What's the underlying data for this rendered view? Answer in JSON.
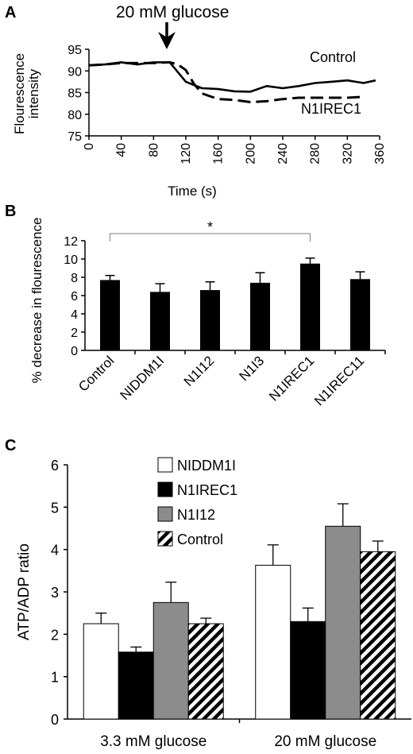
{
  "chart_data": [
    {
      "panel": "A",
      "type": "line",
      "annotation": "20 mM glucose",
      "annotation_x": 100,
      "xlabel": "Time (s)",
      "ylabel": "Flourescence intensity",
      "ylabel_lines": [
        "Flourescence",
        "intensity"
      ],
      "xlim": [
        0,
        360
      ],
      "ylim": [
        75,
        95
      ],
      "xticks": [
        0,
        40,
        80,
        120,
        160,
        200,
        240,
        280,
        320,
        360
      ],
      "yticks": [
        75,
        80,
        85,
        90,
        95
      ],
      "series": [
        {
          "name": "Control",
          "style": "solid",
          "x": [
            0,
            20,
            40,
            60,
            80,
            100,
            120,
            140,
            160,
            180,
            200,
            220,
            240,
            260,
            280,
            300,
            320,
            340,
            355
          ],
          "y": [
            91.3,
            91.5,
            92.0,
            91.5,
            92.0,
            92.0,
            87.5,
            86.0,
            85.8,
            85.3,
            85.2,
            86.5,
            86.0,
            86.5,
            87.2,
            87.5,
            87.8,
            87.2,
            87.8
          ]
        },
        {
          "name": "N1IREC1",
          "style": "dashed",
          "x": [
            0,
            20,
            40,
            60,
            80,
            100,
            110,
            120,
            130,
            140,
            160,
            180,
            200,
            220,
            240,
            260,
            280,
            300,
            320,
            340
          ],
          "y": [
            91.3,
            91.5,
            91.8,
            91.8,
            91.8,
            92.0,
            91.5,
            90.2,
            87.0,
            84.8,
            83.5,
            83.3,
            82.8,
            83.0,
            83.5,
            83.8,
            83.8,
            83.8,
            83.8,
            84.0
          ]
        }
      ]
    },
    {
      "panel": "B",
      "type": "bar",
      "ylabel": "% decrease in flourescence",
      "ylim": [
        0,
        12
      ],
      "yticks": [
        0,
        2,
        4,
        6,
        8,
        10,
        12
      ],
      "categories": [
        "Control",
        "NIDDM1I",
        "N1I12",
        "N1I3",
        "N1IREC1",
        "N1IREC11"
      ],
      "values": [
        7.7,
        6.4,
        6.6,
        7.4,
        9.5,
        7.8
      ],
      "errors": [
        0.5,
        0.9,
        0.9,
        1.1,
        0.6,
        0.8
      ],
      "significance": {
        "from": "Control",
        "to": "N1IREC1",
        "label": "*"
      }
    },
    {
      "panel": "C",
      "type": "bar",
      "ylabel": "ATP/ADP ratio",
      "ylim": [
        0,
        6
      ],
      "yticks": [
        0,
        1,
        2,
        3,
        4,
        5,
        6
      ],
      "categories": [
        "3.3 mM glucose",
        "20 mM glucose"
      ],
      "legend_position": "top-center",
      "series": [
        {
          "name": "NIDDM1I",
          "pattern": "white",
          "values": [
            2.25,
            3.63
          ],
          "errors": [
            0.25,
            0.48
          ]
        },
        {
          "name": "N1IREC1",
          "pattern": "black",
          "values": [
            1.58,
            2.3
          ],
          "errors": [
            0.12,
            0.32
          ]
        },
        {
          "name": "N1I12",
          "pattern": "gray",
          "values": [
            2.75,
            4.55
          ],
          "errors": [
            0.48,
            0.53
          ]
        },
        {
          "name": "Control",
          "pattern": "hatched",
          "values": [
            2.25,
            3.95
          ],
          "errors": [
            0.13,
            0.25
          ]
        }
      ]
    }
  ],
  "colors": {
    "black": "#000000",
    "gray": "#8c8c8c",
    "white": "#ffffff"
  }
}
